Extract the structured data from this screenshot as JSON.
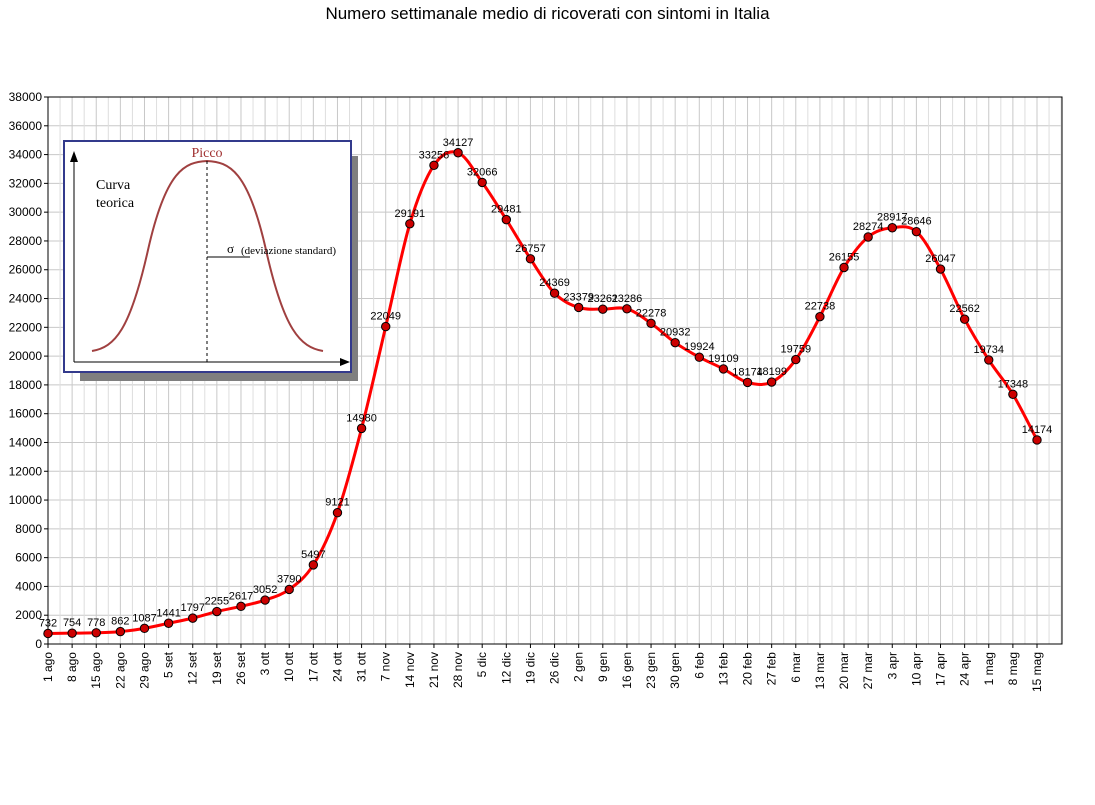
{
  "chart_data": {
    "type": "line",
    "title": "Numero settimanale medio di ricoverati con sintomi in Italia",
    "xlabel": "",
    "ylabel": "",
    "ylim": [
      0,
      38000
    ],
    "ytick_step": 2000,
    "grid": true,
    "line_color": "#ff0000",
    "marker_color": "#cc0000",
    "categories": [
      "1 ago",
      "8 ago",
      "15 ago",
      "22 ago",
      "29 ago",
      "5 set",
      "12 set",
      "19 set",
      "26 set",
      "3 ott",
      "10 ott",
      "17 ott",
      "24 ott",
      "31 ott",
      "7 nov",
      "14 nov",
      "21 nov",
      "28 nov",
      "5 dic",
      "12 dic",
      "19 dic",
      "26 dic",
      "2 gen",
      "9 gen",
      "16 gen",
      "23 gen",
      "30 gen",
      "6 feb",
      "13 feb",
      "20 feb",
      "27 feb",
      "6 mar",
      "13 mar",
      "20 mar",
      "27 mar",
      "3 apr",
      "10 apr",
      "17 apr",
      "24 apr",
      "1 mag",
      "8 mag",
      "15 mag"
    ],
    "values": [
      732,
      754,
      778,
      862,
      1087,
      1441,
      1797,
      2255,
      2617,
      3052,
      3790,
      5497,
      9121,
      14980,
      22049,
      29191,
      33256,
      34127,
      32066,
      29481,
      26757,
      24369,
      23379,
      23261,
      23286,
      22278,
      20932,
      19924,
      19109,
      18174,
      18199,
      19759,
      22738,
      26155,
      28274,
      28917,
      28646,
      26047,
      22562,
      19734,
      17348,
      14174
    ]
  },
  "inset": {
    "peak_label": "Picco",
    "curve_label_line1": "Curva",
    "curve_label_line2": "teorica",
    "sigma_symbol": "σ",
    "sigma_label": "(deviazione standard)"
  }
}
